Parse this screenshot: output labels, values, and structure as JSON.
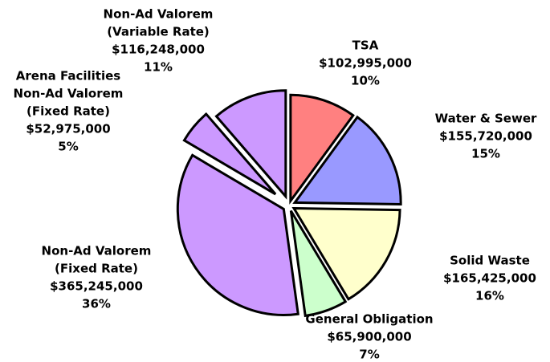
{
  "chart_data": {
    "type": "pie",
    "categories": [
      [
        "TSA"
      ],
      [
        "Water & Sewer"
      ],
      [
        "Solid Waste"
      ],
      [
        "General Obligation"
      ],
      [
        "Non-Ad Valorem",
        "(Fixed Rate)"
      ],
      [
        "Arena Facilities",
        "Non-Ad Valorem",
        "(Fixed Rate)"
      ],
      [
        "Non-Ad Valorem",
        "(Variable Rate)"
      ]
    ],
    "values": [
      102995000,
      155720000,
      165425000,
      65900000,
      365245000,
      52975000,
      116248000
    ],
    "value_labels": [
      "$102,995,000",
      "$155,720,000",
      "$165,425,000",
      "$65,900,000",
      "$365,245,000",
      "$52,975,000",
      "$116,248,000"
    ],
    "percent_labels": [
      "10%",
      "15%",
      "16%",
      "7%",
      "36%",
      "5%",
      "11%"
    ],
    "colors": [
      "#ff8080",
      "#9999ff",
      "#ffffcc",
      "#ccffcc",
      "#cc99ff",
      "#cc99ff",
      "#cc99ff"
    ]
  }
}
